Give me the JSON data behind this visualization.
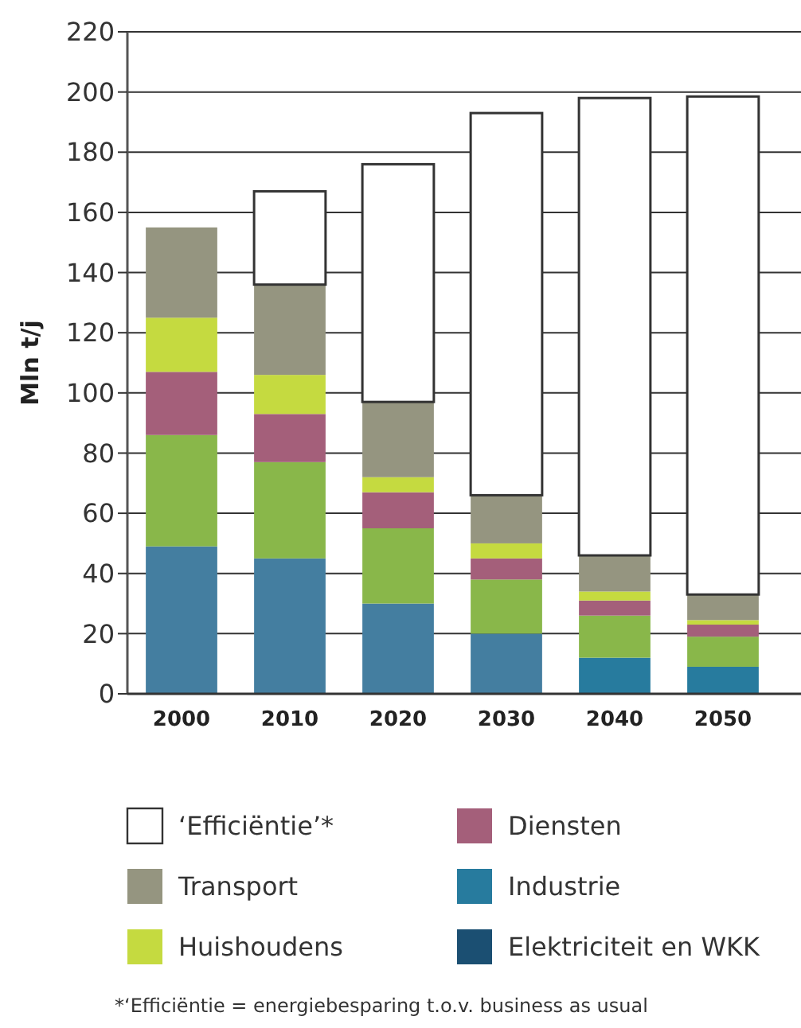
{
  "chart_data": {
    "type": "bar",
    "stacked": true,
    "ylabel": "Mln t/j",
    "categories": [
      "2000",
      "2010",
      "2020",
      "2030",
      "2040",
      "2050"
    ],
    "ylim": [
      0,
      220
    ],
    "yticks": [
      0,
      20,
      40,
      60,
      80,
      100,
      120,
      140,
      160,
      180,
      200,
      220
    ],
    "grid": "y",
    "legend": "bottom",
    "series": [
      {
        "name": "Elektriciteit en WKK",
        "color": "#1b4f72",
        "values": [
          null,
          null,
          null,
          null,
          null,
          null
        ]
      },
      {
        "name": "Industrie",
        "color": "#277b9e",
        "colors": [
          "#447ea0",
          "#447ea0",
          "#447ea0",
          "#447ea0",
          "#277b9e",
          "#277b9e"
        ],
        "values": [
          49,
          45,
          30,
          20,
          12,
          9
        ]
      },
      {
        "color": "#89b74a",
        "values": [
          37,
          32,
          25,
          18,
          14,
          10
        ]
      },
      {
        "name": "Diensten",
        "color": "#a45f7a",
        "values": [
          21,
          16,
          12,
          7,
          5,
          4
        ]
      },
      {
        "name": "Huishoudens",
        "color": "#c5da40",
        "values": [
          18,
          13,
          5,
          5,
          3,
          1.5
        ]
      },
      {
        "name": "Transport",
        "color": "#959580",
        "values": [
          30,
          30,
          25,
          16,
          12,
          8.5
        ]
      },
      {
        "name": "‘Efficiëntie’*",
        "color": "#ffffff",
        "values": [
          null,
          31,
          79,
          127,
          152,
          165.5
        ]
      }
    ],
    "annotations": [
      "*‘Efficiëntie = energiebesparing t.o.v. business as usual"
    ]
  }
}
